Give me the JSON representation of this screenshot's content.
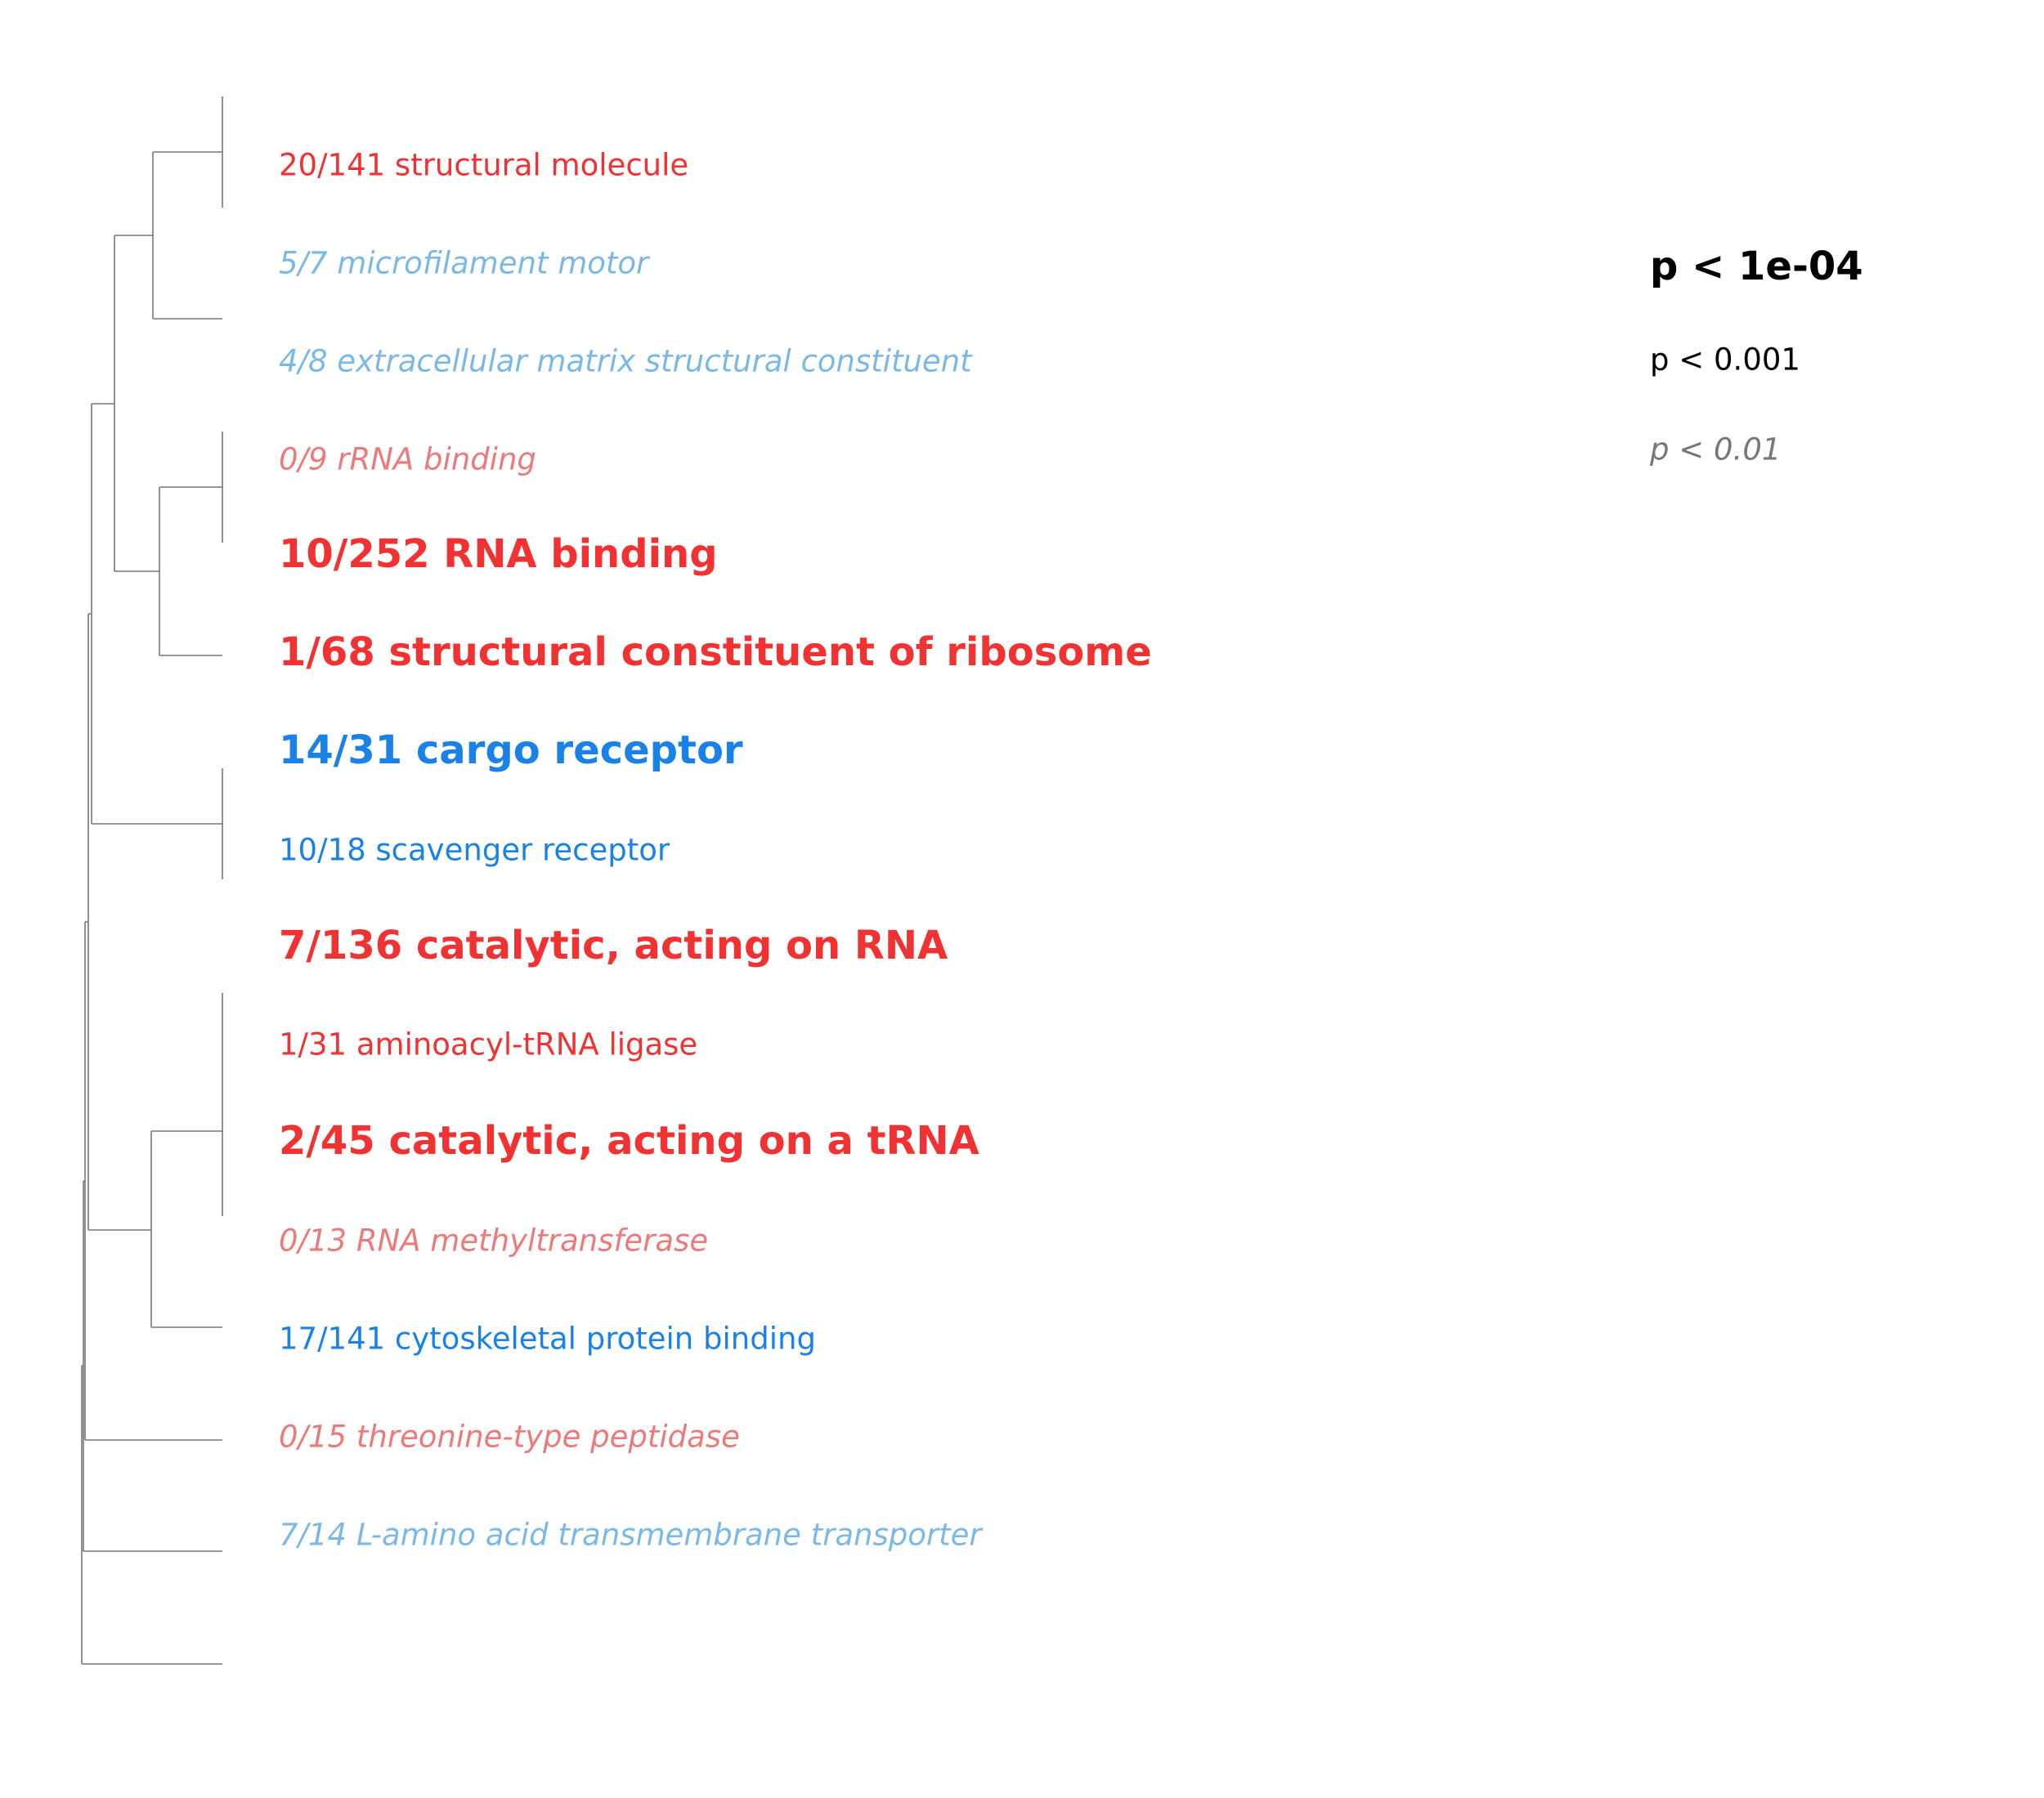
{
  "terms": [
    {
      "text": "20/141 structural molecule",
      "level": "mid",
      "color": "#f03232"
    },
    {
      "text": "5/7 microfilament motor",
      "level": "weak",
      "color": "#7ab8e6"
    },
    {
      "text": "4/8 extracellular matrix structural constituent",
      "level": "weak",
      "color": "#7ab8e6"
    },
    {
      "text": "0/9 rRNA binding",
      "level": "weak",
      "color": "#ec7a7a"
    },
    {
      "text": "10/252 RNA binding",
      "level": "strong",
      "color": "#f03232"
    },
    {
      "text": "1/68 structural constituent of ribosome",
      "level": "strong",
      "color": "#f03232"
    },
    {
      "text": "14/31 cargo receptor",
      "level": "strong",
      "color": "#1a82e6"
    },
    {
      "text": "10/18 scavenger receptor",
      "level": "mid",
      "color": "#1a82e6"
    },
    {
      "text": "7/136 catalytic, acting on RNA",
      "level": "strong",
      "color": "#f03232"
    },
    {
      "text": "1/31 aminoacyl-tRNA ligase",
      "level": "mid",
      "color": "#f03232"
    },
    {
      "text": "2/45 catalytic, acting on a tRNA",
      "level": "strong",
      "color": "#f03232"
    },
    {
      "text": "0/13 RNA methyltransferase",
      "level": "weak",
      "color": "#ec7a7a"
    },
    {
      "text": "17/141 cytoskeletal protein binding",
      "level": "mid",
      "color": "#1a82e6"
    },
    {
      "text": "0/15 threonine-type peptidase",
      "level": "weak",
      "color": "#ec7a7a"
    },
    {
      "text": "7/14 L-amino acid transmembrane transporter",
      "level": "weak",
      "color": "#7ab8e6"
    }
  ],
  "legend": {
    "strong": "p < 1e-04",
    "mid": "p < 0.001",
    "weak": "p < 0.01"
  }
}
